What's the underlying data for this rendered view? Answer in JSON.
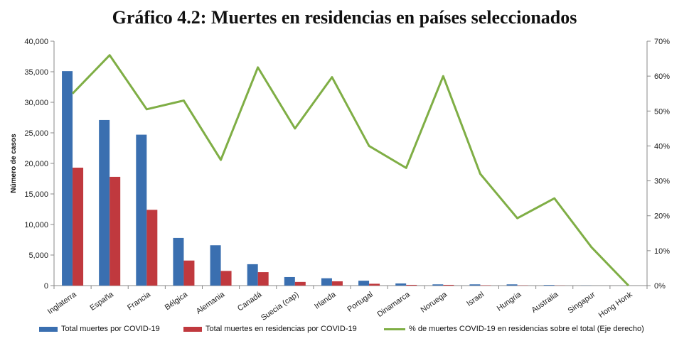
{
  "chart_data": {
    "type": "bar",
    "title": "Gráfico 4.2: Muertes en residencias en países seleccionados",
    "ylabel": "Número de casos",
    "ylim": [
      0,
      40000
    ],
    "y2lim": [
      0,
      0.7
    ],
    "y_ticks": [
      "0",
      "5,000",
      "10,000",
      "15,000",
      "20,000",
      "25,000",
      "30,000",
      "35,000",
      "40,000"
    ],
    "y2_ticks": [
      "0%",
      "10%",
      "20%",
      "30%",
      "40%",
      "50%",
      "60%",
      "70%"
    ],
    "categories": [
      "Inglaterra",
      "España",
      "Francia",
      "Bélgica",
      "Alemania",
      "Canadá",
      "Suecia (cap)",
      "Irlanda",
      "Portugal",
      "Dinamarca",
      "Noruega",
      "Israel",
      "Hungria",
      "Australia",
      "Singapur",
      "Hong Honk"
    ],
    "series": [
      {
        "name": "Total muertes por COVID-19",
        "type": "bar",
        "color": "#3a6fb0",
        "values": [
          35100,
          27100,
          24700,
          7800,
          6600,
          3500,
          1400,
          1200,
          800,
          350,
          200,
          200,
          200,
          100,
          20,
          4
        ]
      },
      {
        "name": "Total muertes en residencias por COVID-19",
        "type": "bar",
        "color": "#c0393e",
        "values": [
          19300,
          17800,
          12400,
          4100,
          2400,
          2200,
          600,
          700,
          300,
          120,
          120,
          60,
          40,
          25,
          0,
          0
        ]
      },
      {
        "name": "% de muertes COVID-19 en residencias sobre el total (Eje derecho)",
        "type": "line",
        "axis": "right",
        "color": "#7fae45",
        "values": [
          0.55,
          0.66,
          0.505,
          0.53,
          0.36,
          0.625,
          0.45,
          0.597,
          0.4,
          0.337,
          0.6,
          0.32,
          0.193,
          0.25,
          0.11,
          0.0
        ]
      }
    ],
    "grid": false,
    "legend_position": "bottom"
  }
}
